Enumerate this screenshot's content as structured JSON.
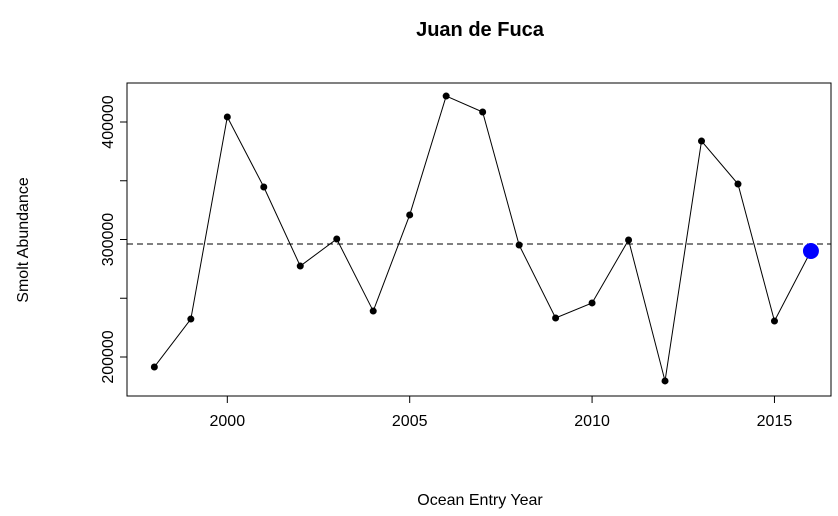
{
  "chart_data": {
    "type": "line",
    "title": "Juan de Fuca",
    "xlabel": "Ocean Entry Year",
    "ylabel": "Smolt Abundance",
    "x": [
      1998,
      1999,
      2000,
      2001,
      2002,
      2003,
      2004,
      2005,
      2006,
      2007,
      2008,
      2009,
      2010,
      2011,
      2012,
      2013,
      2014,
      2015,
      2016
    ],
    "values": [
      191500,
      232300,
      404300,
      344700,
      277400,
      300400,
      239100,
      320900,
      422100,
      408500,
      295300,
      233200,
      246000,
      299600,
      179600,
      383800,
      347200,
      230600,
      290200
    ],
    "color": "#000000",
    "highlight_last": true,
    "highlight_color": "#0000ff",
    "hline": 296200,
    "hline_style": "dashed",
    "xlim": [
      1997.25,
      2016.55
    ],
    "xticks": [
      2000,
      2005,
      2010,
      2015
    ],
    "ylim": [
      166800,
      433200
    ],
    "yticks": [
      200000,
      300000,
      400000
    ],
    "minor_yticks": [
      250000,
      350000
    ]
  }
}
